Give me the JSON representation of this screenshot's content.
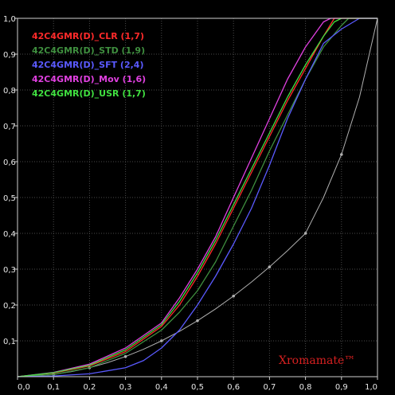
{
  "chart_data": {
    "type": "line",
    "title": "",
    "xlabel": "",
    "ylabel": "",
    "xlim": [
      0,
      1
    ],
    "ylim": [
      0,
      1
    ],
    "grid": true,
    "legend_position": "top-left",
    "x_ticks": [
      "0,0",
      "0,1",
      "0,2",
      "0,3",
      "0,4",
      "0,5",
      "0,6",
      "0,7",
      "0,8",
      "0,9",
      "1,0"
    ],
    "y_ticks": [
      "0,1",
      "0,2",
      "0,3",
      "0,4",
      "0,5",
      "0,6",
      "0,7",
      "0,8",
      "0,9",
      "1,0"
    ],
    "reference": {
      "color": "#b0b0b0",
      "x": [
        0,
        0.05,
        0.1,
        0.15,
        0.2,
        0.25,
        0.3,
        0.35,
        0.4,
        0.45,
        0.5,
        0.55,
        0.6,
        0.65,
        0.7,
        0.75,
        0.8,
        0.85,
        0.9,
        0.95,
        1.0
      ],
      "y": [
        0,
        0.0016,
        0.0063,
        0.0141,
        0.025,
        0.0391,
        0.0563,
        0.0766,
        0.1,
        0.1266,
        0.1563,
        0.1891,
        0.225,
        0.2641,
        0.3063,
        0.3516,
        0.4,
        0.5,
        0.62,
        0.78,
        1.0
      ]
    },
    "series": [
      {
        "name": "42C4GMR(D)_CLR (1,7)",
        "color": "#ff2a2a",
        "x": [
          0,
          0.1,
          0.2,
          0.3,
          0.4,
          0.45,
          0.5,
          0.55,
          0.6,
          0.65,
          0.7,
          0.75,
          0.8,
          0.85,
          0.88,
          0.9,
          1.0
        ],
        "y": [
          0,
          0.01,
          0.03,
          0.07,
          0.14,
          0.2,
          0.28,
          0.37,
          0.47,
          0.57,
          0.67,
          0.77,
          0.86,
          0.95,
          1.0,
          1.0,
          1.0
        ]
      },
      {
        "name": "42C4GMR(D)_STD (1,9)",
        "color": "#3f8f3f",
        "x": [
          0,
          0.1,
          0.2,
          0.3,
          0.4,
          0.45,
          0.5,
          0.55,
          0.6,
          0.65,
          0.7,
          0.75,
          0.8,
          0.85,
          0.9,
          0.92,
          1.0
        ],
        "y": [
          0,
          0.006,
          0.025,
          0.065,
          0.13,
          0.18,
          0.24,
          0.32,
          0.42,
          0.52,
          0.63,
          0.73,
          0.83,
          0.92,
          0.98,
          1.0,
          1.0
        ]
      },
      {
        "name": "42C4GMR(D)_SFT (2,4)",
        "color": "#5a5aff",
        "x": [
          0,
          0.1,
          0.2,
          0.3,
          0.35,
          0.4,
          0.45,
          0.5,
          0.55,
          0.6,
          0.65,
          0.7,
          0.75,
          0.8,
          0.85,
          0.9,
          0.95,
          1.0
        ],
        "y": [
          0,
          0.002,
          0.008,
          0.025,
          0.045,
          0.08,
          0.13,
          0.2,
          0.28,
          0.37,
          0.47,
          0.59,
          0.72,
          0.83,
          0.93,
          0.97,
          1.0,
          1.0
        ]
      },
      {
        "name": "42C4GMR(D)_Mov (1,6)",
        "color": "#e040e0",
        "x": [
          0,
          0.1,
          0.2,
          0.3,
          0.4,
          0.45,
          0.5,
          0.55,
          0.6,
          0.65,
          0.7,
          0.75,
          0.8,
          0.85,
          0.87,
          1.0
        ],
        "y": [
          0,
          0.012,
          0.035,
          0.08,
          0.15,
          0.22,
          0.3,
          0.39,
          0.5,
          0.61,
          0.72,
          0.83,
          0.92,
          0.99,
          1.0,
          1.0
        ]
      },
      {
        "name": "42C4GMR(D)_USR (1,7)",
        "color": "#40e040",
        "x": [
          0,
          0.1,
          0.2,
          0.3,
          0.4,
          0.45,
          0.5,
          0.55,
          0.6,
          0.65,
          0.7,
          0.75,
          0.8,
          0.85,
          0.88,
          0.9,
          1.0
        ],
        "y": [
          0,
          0.011,
          0.032,
          0.075,
          0.145,
          0.21,
          0.29,
          0.38,
          0.48,
          0.58,
          0.68,
          0.78,
          0.87,
          0.95,
          0.99,
          1.0,
          1.0
        ]
      }
    ]
  },
  "brand": "Xromamate™",
  "colors": {
    "background": "#000000",
    "grid": "#4a4a4a",
    "axis": "#cfcfcf",
    "text": "#e8e8e8",
    "brand": "#d62020"
  }
}
